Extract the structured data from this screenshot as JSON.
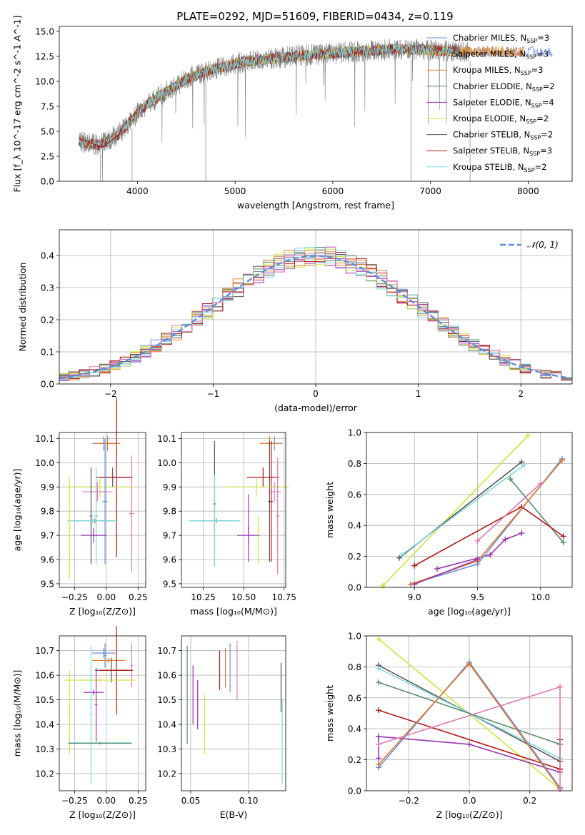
{
  "title": "PLATE=0292, MJD=51609, FIBERID=0434, z=0.119",
  "colors": {
    "chab_miles": "#6a8fd8",
    "salp_miles": "#e07a2e",
    "krou_miles": "#e0902e",
    "chab_elodie": "#5a8a6a",
    "salp_elodie": "#9a35b0",
    "krou_elodie": "#cce640",
    "chab_stelib": "#555555",
    "salp_stelib": "#b01818",
    "krou_stelib": "#7fd8dc",
    "pink": "#e07ab8",
    "normal": "#5b8fd9"
  },
  "chart_data": [
    {
      "type": "line",
      "id": "spectrum",
      "xlabel": "wavelength [Angstrom, rest frame]",
      "ylabel": "Flux [f_λ 10^-17 erg cm^-2 s^-1 A^-1]",
      "xlim": [
        3200,
        8450
      ],
      "ylim": [
        0,
        15.5
      ],
      "xticks": [
        4000,
        5000,
        6000,
        7000,
        8000
      ],
      "yticks": [
        0.0,
        2.5,
        5.0,
        7.5,
        10.0,
        12.5,
        15.0
      ],
      "grid": false,
      "legend_position": "top-right",
      "legend": [
        {
          "label": "Chabrier MILES, N",
          "sub": "SSP",
          "suffix": "=3",
          "color": "chab_miles"
        },
        {
          "label": "Salpeter MILES, N",
          "sub": "SSP",
          "suffix": "=3",
          "color": "salp_miles"
        },
        {
          "label": "Kroupa MILES, N",
          "sub": "SSP",
          "suffix": "=3",
          "color": "krou_miles"
        },
        {
          "label": "Chabrier ELODIE, N",
          "sub": "SSP",
          "suffix": "=2",
          "color": "chab_elodie"
        },
        {
          "label": "Salpeter ELODIE, N",
          "sub": "SSP",
          "suffix": "=4",
          "color": "salp_elodie"
        },
        {
          "label": "Kroupa ELODIE, N",
          "sub": "SSP",
          "suffix": "=2",
          "color": "krou_elodie"
        },
        {
          "label": "Chabrier STELIB, N",
          "sub": "SSP",
          "suffix": "=2",
          "color": "chab_stelib"
        },
        {
          "label": "Salpeter STELIB, N",
          "sub": "SSP",
          "suffix": "=3",
          "color": "salp_stelib"
        },
        {
          "label": "Kroupa STELIB, N",
          "sub": "SSP",
          "suffix": "=2",
          "color": "krou_stelib"
        }
      ],
      "continuum": {
        "x": [
          3400,
          3600,
          3800,
          3950,
          4100,
          4300,
          4500,
          4700,
          4900,
          5100,
          5400,
          5700,
          6000,
          6300,
          6600,
          6900,
          7200,
          7400
        ],
        "y": [
          4.0,
          3.6,
          4.6,
          6.3,
          7.7,
          9.0,
          10.2,
          11.0,
          11.5,
          12.0,
          12.3,
          12.6,
          12.8,
          13.0,
          13.2,
          13.2,
          13.0,
          13.0
        ]
      },
      "data_x_range": [
        3400,
        7400
      ],
      "model_x_range": [
        3400,
        8250
      ]
    },
    {
      "type": "histogram",
      "id": "residuals",
      "xlabel": "(data-model)/error",
      "ylabel": "Normed distribution",
      "xlim": [
        -2.5,
        2.5
      ],
      "ylim": [
        0,
        0.48
      ],
      "xticks": [
        -2,
        -1,
        0,
        1,
        2
      ],
      "yticks": [
        0.0,
        0.1,
        0.2,
        0.3,
        0.4
      ],
      "grid": true,
      "bin_width": 0.1,
      "legend_position": "top-right",
      "reference": {
        "label": "𝒩(0, 1)",
        "mean": 0,
        "sigma": 1,
        "color": "normal"
      }
    },
    {
      "type": "errorbar",
      "id": "z-age",
      "xlabel": "Z [log₁₀(Z/Z⊙)]",
      "ylabel": "age  [log₁₀(age/yr)]",
      "xlim": [
        -0.37,
        0.31
      ],
      "ylim": [
        9.485,
        10.125
      ],
      "xticks": [
        -0.25,
        0.0,
        0.25
      ],
      "xticklabels": [
        "−0.25",
        "0.00",
        "0.25"
      ],
      "yticks": [
        9.5,
        9.6,
        9.7,
        9.8,
        9.9,
        10.0,
        10.1
      ],
      "grid": true,
      "points": [
        {
          "x": -0.02,
          "xerr": 0.09,
          "y": 10.08,
          "yerr": 0.03,
          "color": "chab_miles"
        },
        {
          "x": 0.01,
          "xerr": 0.1,
          "y": 10.08,
          "yerr": 0.03,
          "color": "salp_miles"
        },
        {
          "x": 0.05,
          "xerr": 0.13,
          "y": 9.94,
          "yerr": 0.04,
          "color": "chab_stelib"
        },
        {
          "x": 0.08,
          "xerr": 0.13,
          "y": 9.94,
          "yerr": 0.33,
          "color": "salp_stelib"
        },
        {
          "x": 0.2,
          "xerr": 0.02,
          "y": 9.79,
          "yerr": 0.24,
          "color": "pink"
        },
        {
          "x": -0.05,
          "xerr": 0.27,
          "y": 9.9,
          "yerr": 0.04,
          "color": "krou_elodie"
        },
        {
          "x": -0.07,
          "xerr": 0.12,
          "y": 9.88,
          "yerr": 0.04,
          "color": "pink"
        },
        {
          "x": -0.01,
          "xerr": 0.02,
          "y": 9.84,
          "yerr": 0.26,
          "color": "chab_miles"
        },
        {
          "x": -0.12,
          "xerr": 0.01,
          "y": 9.78,
          "yerr": 0.2,
          "color": "chab_stelib"
        },
        {
          "x": -0.09,
          "xerr": 0.17,
          "y": 9.76,
          "yerr": 0.01,
          "color": "chab_elodie"
        },
        {
          "x": -0.11,
          "xerr": 0.2,
          "y": 9.76,
          "yerr": 0.01,
          "color": "krou_stelib"
        },
        {
          "x": -0.08,
          "xerr": 0.02,
          "y": 9.78,
          "yerr": 0.2,
          "color": "krou_stelib"
        },
        {
          "x": -0.1,
          "xerr": 0.1,
          "y": 9.7,
          "yerr": 0.03,
          "color": "salp_elodie"
        },
        {
          "x": -0.29,
          "xerr": 0.01,
          "y": 9.73,
          "yerr": 0.21,
          "color": "krou_elodie"
        }
      ]
    },
    {
      "type": "errorbar",
      "id": "mass-age",
      "xlabel": "mass [log₁₀(M/M⊙)]",
      "ylabel": "",
      "xlim": [
        10.115,
        10.76
      ],
      "ylim": [
        9.485,
        10.125
      ],
      "xticks": [
        10.25,
        10.5,
        10.75
      ],
      "xticklabels": [
        "10.25",
        "10.50",
        "10.75"
      ],
      "yticks": [
        9.5,
        9.6,
        9.7,
        9.8,
        9.9,
        10.0,
        10.1
      ],
      "grid": true,
      "points": [
        {
          "x": 10.69,
          "xerr": 0.05,
          "y": 10.08,
          "yerr": 0.03,
          "color": "chab_miles"
        },
        {
          "x": 10.66,
          "xerr": 0.06,
          "y": 10.08,
          "yerr": 0.03,
          "color": "salp_miles"
        },
        {
          "x": 10.62,
          "xerr": 0.1,
          "y": 9.94,
          "yerr": 0.04,
          "color": "salp_stelib"
        },
        {
          "x": 10.66,
          "xerr": 0.01,
          "y": 9.84,
          "yerr": 0.25,
          "color": "chab_stelib"
        },
        {
          "x": 10.67,
          "xerr": 0.01,
          "y": 9.84,
          "yerr": 0.25,
          "color": "salp_stelib"
        },
        {
          "x": 10.58,
          "xerr": 0.2,
          "y": 9.9,
          "yerr": 0.04,
          "color": "krou_elodie"
        },
        {
          "x": 10.69,
          "xerr": 0.04,
          "y": 9.88,
          "yerr": 0.04,
          "color": "pink"
        },
        {
          "x": 10.71,
          "xerr": 0.01,
          "y": 9.78,
          "yerr": 0.24,
          "color": "pink"
        },
        {
          "x": 10.32,
          "xerr": 0.01,
          "y": 9.83,
          "yerr": 0.26,
          "color": "chab_stelib"
        },
        {
          "x": 10.33,
          "xerr": 0.14,
          "y": 9.76,
          "yerr": 0.01,
          "color": "chab_elodie"
        },
        {
          "x": 10.32,
          "xerr": 0.16,
          "y": 9.76,
          "yerr": 0.01,
          "color": "krou_stelib"
        },
        {
          "x": 10.32,
          "xerr": 0.01,
          "y": 9.76,
          "yerr": 0.19,
          "color": "krou_stelib"
        },
        {
          "x": 10.53,
          "xerr": 0.07,
          "y": 9.7,
          "yerr": 0.03,
          "color": "salp_elodie"
        },
        {
          "x": 10.53,
          "xerr": 0.005,
          "y": 9.73,
          "yerr": 0.14,
          "color": "salp_elodie"
        },
        {
          "x": 10.59,
          "xerr": 0.005,
          "y": 9.68,
          "yerr": 0.1,
          "color": "krou_elodie"
        }
      ]
    },
    {
      "type": "line",
      "id": "age-weight",
      "xlabel": "age  [log₁₀(age/yr)]",
      "ylabel": "mass weight",
      "xlim": [
        8.62,
        10.25
      ],
      "ylim": [
        0,
        1.0
      ],
      "xticks": [
        9.0,
        9.5,
        10.0
      ],
      "xticklabels": [
        "9.0",
        "9.5",
        "10.0"
      ],
      "yticks": [
        0.0,
        0.2,
        0.4,
        0.6,
        0.8,
        1.0
      ],
      "grid": true,
      "series": [
        {
          "color": "krou_elodie",
          "x": [
            8.75,
            9.9
          ],
          "y": [
            0.01,
            0.98
          ]
        },
        {
          "color": "chab_stelib",
          "x": [
            8.88,
            9.85
          ],
          "y": [
            0.19,
            0.81
          ]
        },
        {
          "color": "krou_stelib",
          "x": [
            8.9,
            9.87
          ],
          "y": [
            0.21,
            0.79
          ]
        },
        {
          "color": "chab_elodie",
          "x": [
            9.76,
            10.18
          ],
          "y": [
            0.7,
            0.29
          ]
        },
        {
          "color": "salp_stelib",
          "x": [
            9.0,
            9.85,
            10.18
          ],
          "y": [
            0.14,
            0.52,
            0.33
          ]
        },
        {
          "color": "salp_elodie",
          "x": [
            9.18,
            9.6,
            9.72,
            9.85
          ],
          "y": [
            0.12,
            0.21,
            0.31,
            0.35
          ]
        },
        {
          "color": "chab_miles",
          "x": [
            8.97,
            9.5,
            10.17
          ],
          "y": [
            0.02,
            0.15,
            0.83
          ]
        },
        {
          "color": "salp_miles",
          "x": [
            8.97,
            9.5,
            10.17
          ],
          "y": [
            0.02,
            0.17,
            0.82
          ]
        },
        {
          "color": "pink",
          "x": [
            9.5,
            10.0
          ],
          "y": [
            0.3,
            0.67
          ]
        },
        {
          "color": "salp_elodie",
          "x": [
            9.0,
            9.5
          ],
          "y": [
            0.02,
            0.18
          ]
        }
      ]
    },
    {
      "type": "errorbar",
      "id": "z-mass",
      "xlabel": "Z [log₁₀(Z/Z⊙)]",
      "ylabel": "mass [log₁₀(M/M⊙)]",
      "xlim": [
        -0.37,
        0.31
      ],
      "ylim": [
        10.13,
        10.76
      ],
      "xticks": [
        -0.25,
        0.0,
        0.25
      ],
      "xticklabels": [
        "−0.25",
        "0.00",
        "0.25"
      ],
      "yticks": [
        10.2,
        10.3,
        10.4,
        10.5,
        10.6,
        10.7
      ],
      "grid": true,
      "points": [
        {
          "x": -0.02,
          "xerr": 0.09,
          "y": 10.69,
          "yerr": 0.02,
          "color": "chab_miles"
        },
        {
          "x": -0.01,
          "xerr": 0.01,
          "y": 10.68,
          "yerr": 0.05,
          "color": "chab_miles"
        },
        {
          "x": 0.02,
          "xerr": 0.13,
          "y": 10.66,
          "yerr": 0.01,
          "color": "salp_miles"
        },
        {
          "x": 0.2,
          "xerr": 0.01,
          "y": 10.64,
          "yerr": 0.09,
          "color": "pink"
        },
        {
          "x": 0.04,
          "xerr": 0.13,
          "y": 10.62,
          "yerr": 0.05,
          "color": "chab_stelib"
        },
        {
          "x": 0.08,
          "xerr": 0.13,
          "y": 10.62,
          "yerr": 0.18,
          "color": "salp_stelib"
        },
        {
          "x": -0.05,
          "xerr": 0.28,
          "y": 10.58,
          "yerr": 0.01,
          "color": "krou_elodie"
        },
        {
          "x": -0.29,
          "xerr": 0.01,
          "y": 10.45,
          "yerr": 0.17,
          "color": "krou_elodie"
        },
        {
          "x": -0.1,
          "xerr": 0.08,
          "y": 10.53,
          "yerr": 0.01,
          "color": "salp_elodie"
        },
        {
          "x": -0.08,
          "xerr": 0.01,
          "y": 10.48,
          "yerr": 0.15,
          "color": "salp_elodie"
        },
        {
          "x": -0.12,
          "xerr": 0.01,
          "y": 10.44,
          "yerr": 0.28,
          "color": "krou_stelib"
        },
        {
          "x": -0.05,
          "xerr": 0.25,
          "y": 10.325,
          "yerr": 0.005,
          "color": "krou_stelib"
        },
        {
          "x": -0.05,
          "xerr": 0.25,
          "y": 10.323,
          "yerr": 0.005,
          "color": "chab_elodie"
        }
      ]
    },
    {
      "type": "errorbar",
      "id": "ebv-mass",
      "xlabel": "E(B-V)",
      "ylabel": "",
      "xlim": [
        0.042,
        0.132
      ],
      "ylim": [
        10.13,
        10.76
      ],
      "xticks": [
        0.05,
        0.1
      ],
      "xticklabels": [
        "0.05",
        "0.10"
      ],
      "yticks": [
        10.2,
        10.3,
        10.4,
        10.5,
        10.6,
        10.7
      ],
      "grid": true,
      "points": [
        {
          "x": 0.047,
          "xerr": 0,
          "y": 10.52,
          "yerr": 0.2,
          "color": "chab_elodie"
        },
        {
          "x": 0.052,
          "xerr": 0,
          "y": 10.52,
          "yerr": 0.12,
          "color": "salp_elodie"
        },
        {
          "x": 0.056,
          "xerr": 0,
          "y": 10.48,
          "yerr": 0.1,
          "color": "salp_elodie"
        },
        {
          "x": 0.062,
          "xerr": 0,
          "y": 10.4,
          "yerr": 0.12,
          "color": "krou_elodie"
        },
        {
          "x": 0.075,
          "xerr": 0,
          "y": 10.62,
          "yerr": 0.08,
          "color": "salp_stelib"
        },
        {
          "x": 0.08,
          "xerr": 0,
          "y": 10.63,
          "yerr": 0.08,
          "color": "salp_miles"
        },
        {
          "x": 0.084,
          "xerr": 0,
          "y": 10.63,
          "yerr": 0.1,
          "color": "chab_miles"
        },
        {
          "x": 0.09,
          "xerr": 0,
          "y": 10.62,
          "yerr": 0.12,
          "color": "pink"
        },
        {
          "x": 0.128,
          "xerr": 0,
          "y": 10.55,
          "yerr": 0.1,
          "color": "chab_stelib"
        },
        {
          "x": 0.129,
          "xerr": 0,
          "y": 10.33,
          "yerr": 0.17,
          "color": "krou_stelib"
        }
      ]
    },
    {
      "type": "line",
      "id": "z-weight",
      "xlabel": "Z [log₁₀(Z/Z⊙)]",
      "ylabel": "mass weight",
      "xlim": [
        -0.34,
        0.34
      ],
      "ylim": [
        0,
        1.0
      ],
      "xticks": [
        -0.2,
        0.0,
        0.2
      ],
      "xticklabels": [
        "−0.2",
        "0.0",
        "0.2"
      ],
      "yticks": [
        0.0,
        0.2,
        0.4,
        0.6,
        0.8,
        1.0
      ],
      "grid": true,
      "series": [
        {
          "color": "krou_elodie",
          "x": [
            -0.3,
            0.3
          ],
          "y": [
            0.98,
            0.01
          ]
        },
        {
          "color": "chab_stelib",
          "x": [
            -0.3,
            0.3
          ],
          "y": [
            0.81,
            0.19
          ]
        },
        {
          "color": "krou_stelib",
          "x": [
            -0.3,
            0.3
          ],
          "y": [
            0.79,
            0.21
          ]
        },
        {
          "color": "chab_elodie",
          "x": [
            -0.3,
            0.3
          ],
          "y": [
            0.7,
            0.3
          ]
        },
        {
          "color": "salp_stelib",
          "x": [
            -0.3,
            0.3
          ],
          "y": [
            0.52,
            0.14
          ]
        },
        {
          "color": "salp_stelib",
          "x": [
            0.3,
            0.3
          ],
          "y": [
            0.14,
            0.33
          ]
        },
        {
          "color": "salp_elodie",
          "x": [
            -0.3,
            0.0,
            0.3
          ],
          "y": [
            0.35,
            0.3,
            0.12
          ]
        },
        {
          "color": "salp_elodie",
          "x": [
            -0.3,
            -0.3
          ],
          "y": [
            0.21,
            0.35
          ]
        },
        {
          "color": "chab_miles",
          "x": [
            -0.3,
            0.0,
            0.3
          ],
          "y": [
            0.15,
            0.83,
            0.02
          ]
        },
        {
          "color": "salp_miles",
          "x": [
            -0.3,
            0.0,
            0.3
          ],
          "y": [
            0.17,
            0.82,
            0.01
          ]
        },
        {
          "color": "pink",
          "x": [
            -0.3,
            0.3
          ],
          "y": [
            0.3,
            0.67
          ]
        },
        {
          "color": "pink",
          "x": [
            0.3,
            0.3
          ],
          "y": [
            0.01,
            0.67
          ]
        }
      ]
    }
  ]
}
